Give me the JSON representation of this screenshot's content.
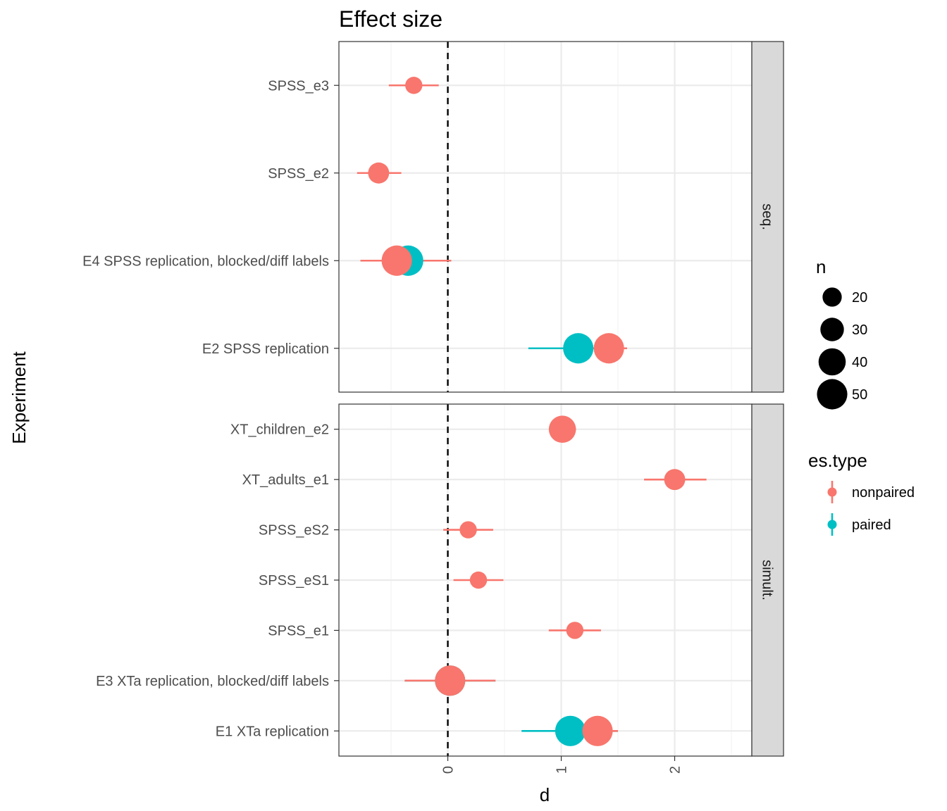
{
  "chart_data": {
    "type": "scatter",
    "title": "Effect size",
    "xlabel": "d",
    "ylabel": "Experiment",
    "xlim": [
      -0.96,
      2.68
    ],
    "x_ticks": [
      0,
      1,
      2
    ],
    "x_tick_labels": [
      "0",
      "1",
      "2"
    ],
    "reference_line_x": 0,
    "grid": true,
    "colors": {
      "nonpaired": "#f8766d",
      "paired": "#00bfc4"
    },
    "facets": [
      {
        "strip": "seq.",
        "categories": [
          "SPSS_e3",
          "SPSS_e2",
          "E4 SPSS replication, blocked/diff labels",
          "E2 SPSS replication"
        ],
        "points": [
          {
            "experiment": "SPSS_e3",
            "es_type": "nonpaired",
            "d": -0.3,
            "ci": [
              -0.52,
              -0.08
            ],
            "n": 16
          },
          {
            "experiment": "SPSS_e2",
            "es_type": "nonpaired",
            "d": -0.61,
            "ci": [
              -0.8,
              -0.41
            ],
            "n": 24
          },
          {
            "experiment": "E4 SPSS replication, blocked/diff labels",
            "es_type": "paired",
            "d": -0.35,
            "ci": [
              -0.77,
              0.03
            ],
            "n": 50
          },
          {
            "experiment": "E4 SPSS replication, blocked/diff labels",
            "es_type": "nonpaired",
            "d": -0.45,
            "ci": [
              -0.77,
              0.03
            ],
            "n": 50
          },
          {
            "experiment": "E2 SPSS replication",
            "es_type": "paired",
            "d": 1.15,
            "ci": [
              0.71,
              1.58
            ],
            "n": 50
          },
          {
            "experiment": "E2 SPSS replication",
            "es_type": "nonpaired",
            "d": 1.42,
            "ci": [
              1.25,
              1.58
            ],
            "n": 50
          }
        ]
      },
      {
        "strip": "simult.",
        "categories": [
          "XT_children_e2",
          "XT_adults_e1",
          "SPSS_eS2",
          "SPSS_eS1",
          "SPSS_e1",
          "E3 XTa replication, blocked/diff labels",
          "E1 XTa replication"
        ],
        "points": [
          {
            "experiment": "XT_children_e2",
            "es_type": "nonpaired",
            "d": 1.01,
            "ci": [
              0.9,
              1.13
            ],
            "n": 40
          },
          {
            "experiment": "XT_adults_e1",
            "es_type": "nonpaired",
            "d": 2.0,
            "ci": [
              1.73,
              2.28
            ],
            "n": 24
          },
          {
            "experiment": "SPSS_eS2",
            "es_type": "nonpaired",
            "d": 0.18,
            "ci": [
              -0.04,
              0.4
            ],
            "n": 16
          },
          {
            "experiment": "SPSS_eS1",
            "es_type": "nonpaired",
            "d": 0.27,
            "ci": [
              0.05,
              0.49
            ],
            "n": 16
          },
          {
            "experiment": "SPSS_e1",
            "es_type": "nonpaired",
            "d": 1.12,
            "ci": [
              0.89,
              1.35
            ],
            "n": 16
          },
          {
            "experiment": "E3 XTa replication, blocked/diff labels",
            "es_type": "paired",
            "d": 0.02,
            "ci": [
              -0.38,
              0.42
            ],
            "n": 50
          },
          {
            "experiment": "E3 XTa replication, blocked/diff labels",
            "es_type": "nonpaired",
            "d": 0.02,
            "ci": [
              -0.38,
              0.42
            ],
            "n": 50
          },
          {
            "experiment": "E1 XTa replication",
            "es_type": "paired",
            "d": 1.08,
            "ci": [
              0.65,
              1.5
            ],
            "n": 50
          },
          {
            "experiment": "E1 XTa replication",
            "es_type": "nonpaired",
            "d": 1.32,
            "ci": [
              1.15,
              1.5
            ],
            "n": 50
          }
        ]
      }
    ],
    "legend": {
      "placement": "right",
      "size": {
        "title": "n",
        "entries": [
          20,
          30,
          40,
          50
        ],
        "labels": [
          "20",
          "30",
          "40",
          "50"
        ]
      },
      "color": {
        "title": "es.type",
        "entries": [
          "nonpaired",
          "paired"
        ]
      }
    }
  }
}
